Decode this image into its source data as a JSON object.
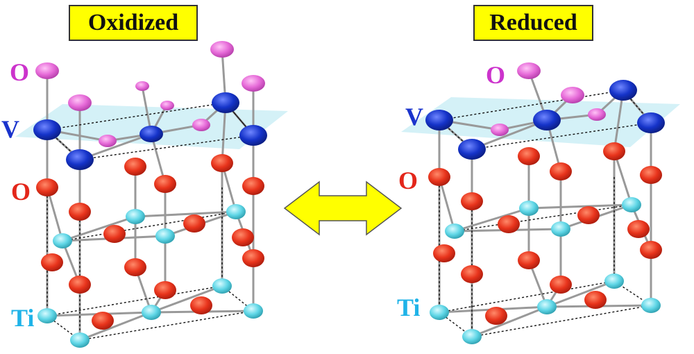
{
  "titles": {
    "oxidized": "Oxidized",
    "reduced": "Reduced"
  },
  "labels": {
    "left": {
      "o_top": "O",
      "v": "V",
      "o_mid": "O",
      "ti": "Ti"
    },
    "right": {
      "o_top": "O",
      "v": "V",
      "o_mid": "O",
      "ti": "Ti"
    }
  },
  "colors": {
    "vanadium": "#1533c9",
    "oxygen_lattice": "#e8341c",
    "oxygen_surface": "#e66ad8",
    "titanium": "#5fd6e6",
    "plane": "#cdeef6",
    "arrow": "#ffff00",
    "label_o_top": "#cc33cc",
    "label_v": "#1a33cc",
    "label_o_mid": "#e3261a",
    "label_ti": "#1fb3e8"
  },
  "arrow": {
    "type": "double-headed",
    "meaning": "reversible redox"
  }
}
